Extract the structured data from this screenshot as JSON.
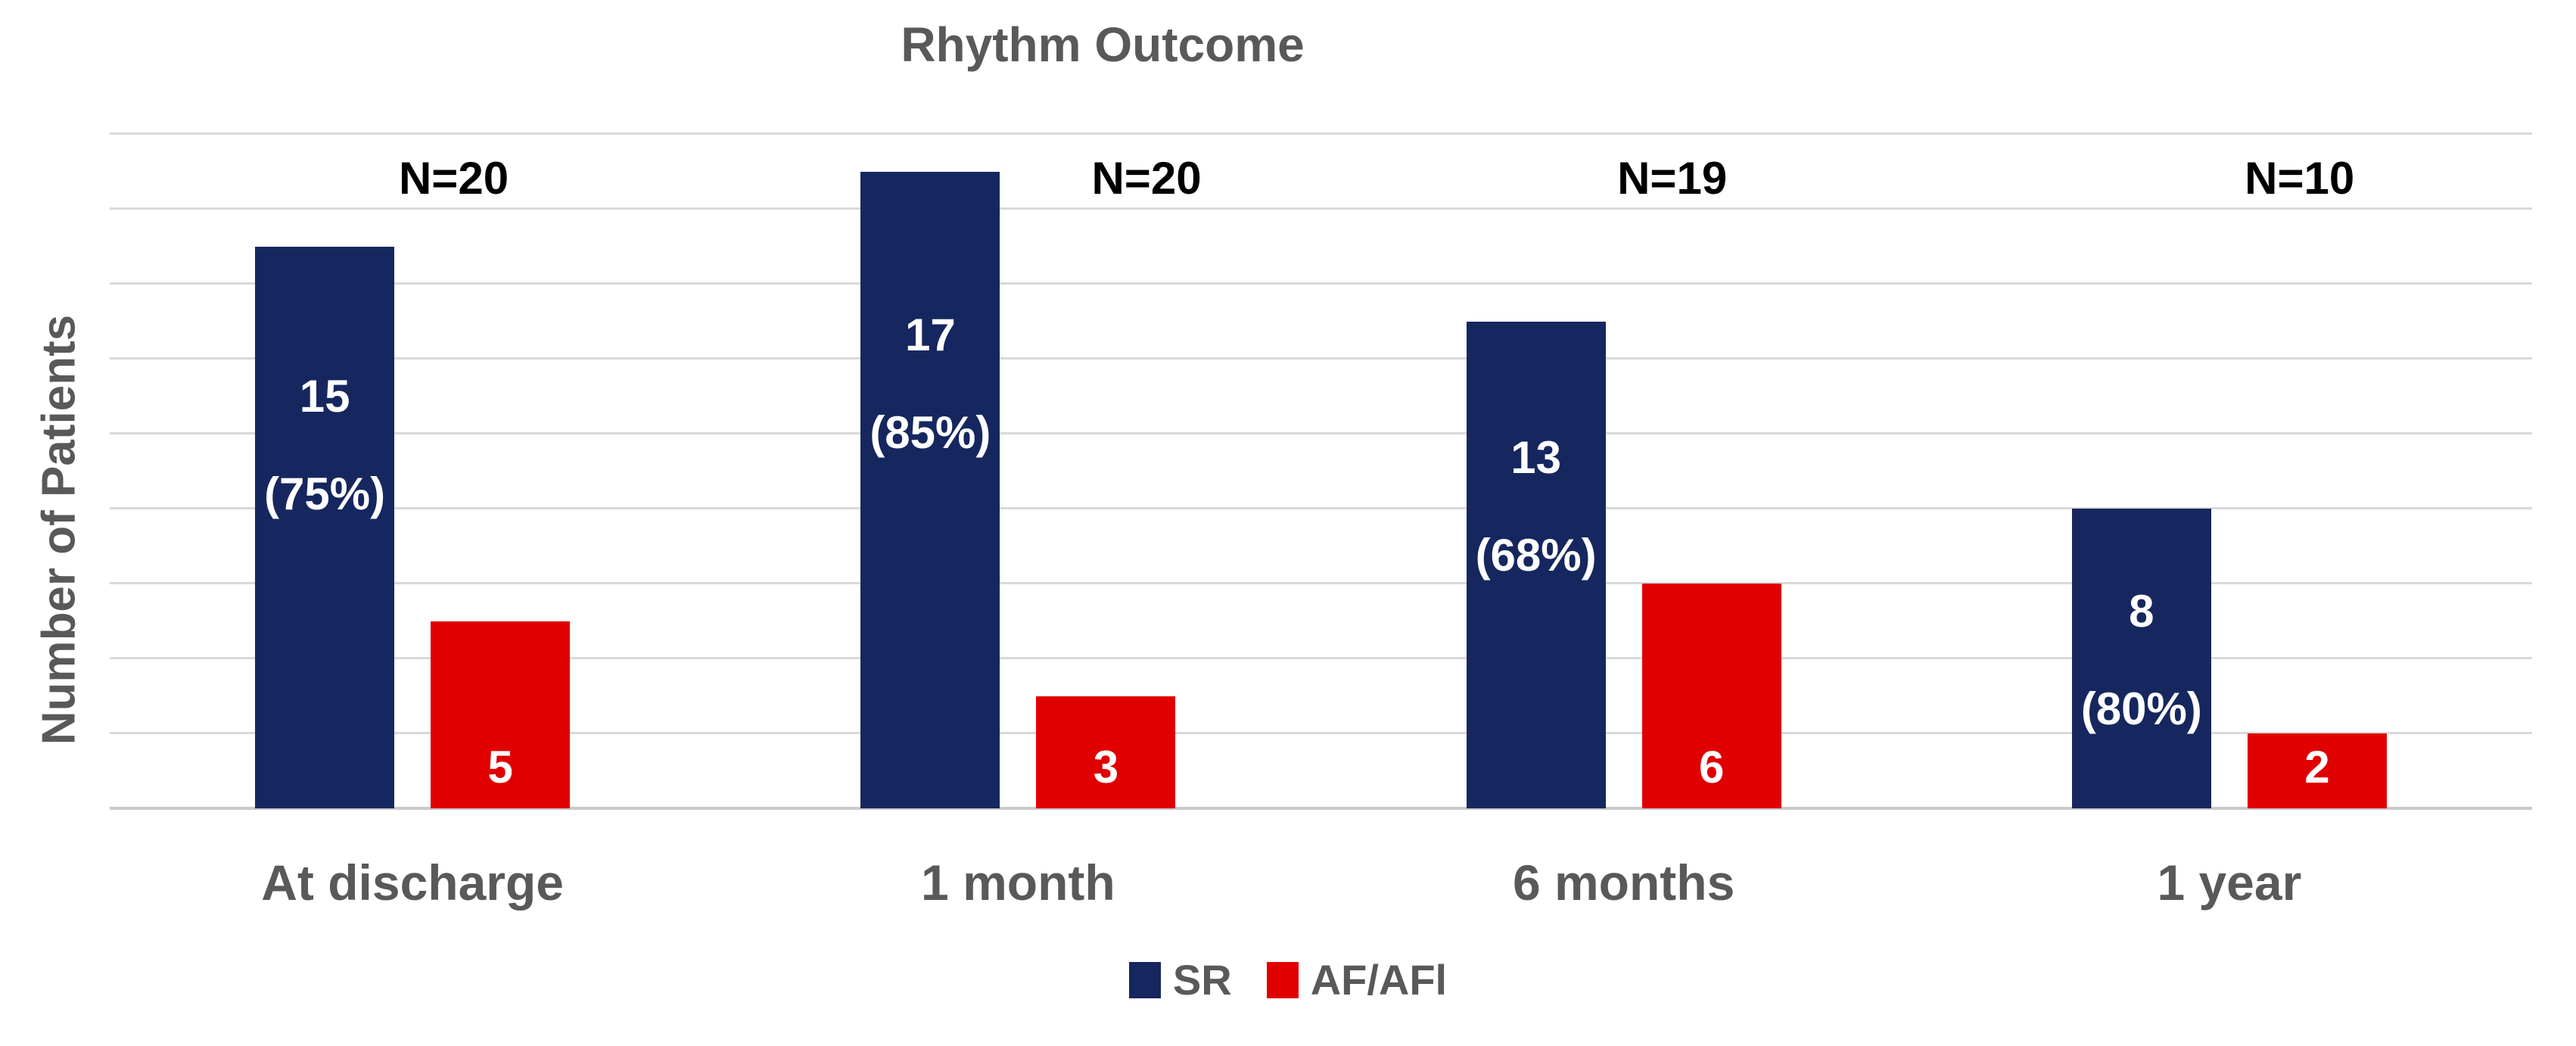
{
  "title": "Rhythm Outcome",
  "chart_data": {
    "type": "bar",
    "title": "Rhythm Outcome",
    "xlabel": "",
    "ylabel": "Number of Patients",
    "ylim": [
      0,
      18
    ],
    "gridline_step": 2,
    "grid": true,
    "legend_position": "bottom-center",
    "categories": [
      "At discharge",
      "1 month",
      "6 months",
      "1 year"
    ],
    "series": [
      {
        "name": "SR",
        "color": "#16275F",
        "values": [
          15,
          17,
          13,
          8
        ]
      },
      {
        "name": "AF/AFl",
        "color": "#E00000",
        "values": [
          5,
          3,
          6,
          2
        ]
      }
    ],
    "groups": [
      {
        "category": "At discharge",
        "n_label": "N=20",
        "sr": 15,
        "sr_pct": "(75%)",
        "af": 5
      },
      {
        "category": "1 month",
        "n_label": "N=20",
        "sr": 17,
        "sr_pct": "(85%)",
        "af": 3
      },
      {
        "category": "6 months",
        "n_label": "N=19",
        "sr": 13,
        "sr_pct": "(68%)",
        "af": 6
      },
      {
        "category": "1 year",
        "n_label": "N=10",
        "sr": 8,
        "sr_pct": "(80%)",
        "af": 2
      }
    ]
  },
  "legend": {
    "items": [
      {
        "label": "SR",
        "color": "#16275F"
      },
      {
        "label": "AF/AFl",
        "color": "#E00000"
      }
    ]
  },
  "colors": {
    "sr_bar": "#16275F",
    "af_bar": "#E00000",
    "axis_text": "#595959",
    "n_label_text": "#000000",
    "gridline": "#D9D9D9",
    "bar_label_text": "#FFFFFF",
    "background": "#FFFFFF"
  }
}
